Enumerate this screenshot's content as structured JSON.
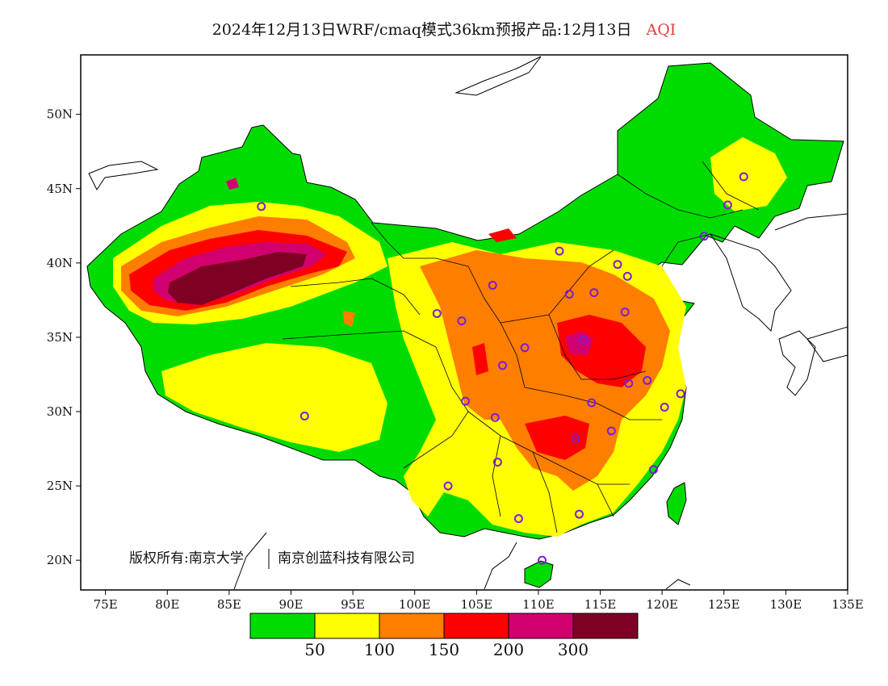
{
  "title": {
    "main": "2024年12月13日WRF/cmaq模式36km预报产品:12月13日",
    "variable": "AQI"
  },
  "map": {
    "lon_range": [
      73,
      135
    ],
    "lat_range": [
      18,
      54
    ],
    "x_ticks": [
      "75E",
      "80E",
      "85E",
      "90E",
      "95E",
      "100E",
      "105E",
      "110E",
      "115E",
      "120E",
      "125E",
      "130E",
      "135E"
    ],
    "y_ticks": [
      "20N",
      "25N",
      "30N",
      "35N",
      "40N",
      "45N",
      "50N"
    ],
    "copyright_left": "版权所有:南京大学",
    "copyright_right": "南京创蓝科技有限公司"
  },
  "legend": {
    "colors": [
      "#00dc00",
      "#ffff00",
      "#ff7e00",
      "#ff0000",
      "#d2006e",
      "#7e0023"
    ],
    "labels": [
      "50",
      "100",
      "150",
      "200",
      "300"
    ]
  },
  "stations": [
    {
      "lon": 87.6,
      "lat": 43.8
    },
    {
      "lon": 91.1,
      "lat": 29.7
    },
    {
      "lon": 101.8,
      "lat": 36.6
    },
    {
      "lon": 103.8,
      "lat": 36.1
    },
    {
      "lon": 106.3,
      "lat": 38.5
    },
    {
      "lon": 111.7,
      "lat": 40.8
    },
    {
      "lon": 112.5,
      "lat": 37.9
    },
    {
      "lon": 114.5,
      "lat": 38.0
    },
    {
      "lon": 116.4,
      "lat": 39.9
    },
    {
      "lon": 117.2,
      "lat": 39.1
    },
    {
      "lon": 123.4,
      "lat": 41.8
    },
    {
      "lon": 125.3,
      "lat": 43.9
    },
    {
      "lon": 126.6,
      "lat": 45.8
    },
    {
      "lon": 117.0,
      "lat": 36.7
    },
    {
      "lon": 113.6,
      "lat": 34.8
    },
    {
      "lon": 108.9,
      "lat": 34.3
    },
    {
      "lon": 106.5,
      "lat": 29.6
    },
    {
      "lon": 104.1,
      "lat": 30.7
    },
    {
      "lon": 114.3,
      "lat": 30.6
    },
    {
      "lon": 117.3,
      "lat": 31.9
    },
    {
      "lon": 118.8,
      "lat": 32.1
    },
    {
      "lon": 121.5,
      "lat": 31.2
    },
    {
      "lon": 120.2,
      "lat": 30.3
    },
    {
      "lon": 115.9,
      "lat": 28.7
    },
    {
      "lon": 113.0,
      "lat": 28.2
    },
    {
      "lon": 119.3,
      "lat": 26.1
    },
    {
      "lon": 113.3,
      "lat": 23.1
    },
    {
      "lon": 108.4,
      "lat": 22.8
    },
    {
      "lon": 106.7,
      "lat": 26.6
    },
    {
      "lon": 102.7,
      "lat": 25.0
    },
    {
      "lon": 110.3,
      "lat": 20.0
    },
    {
      "lon": 107.1,
      "lat": 33.1
    }
  ]
}
